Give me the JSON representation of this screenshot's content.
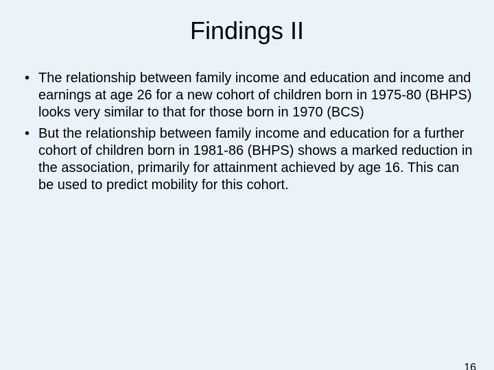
{
  "background_color": "#eaf2fa",
  "text_color": "#000000",
  "title": {
    "text": "Findings II",
    "fontsize": 36
  },
  "bullets": [
    "The relationship between family income and education and income and earnings at age 26 for a new cohort of children born in 1975-80 (BHPS) looks very similar to that for those born in 1970 (BCS)",
    "But the relationship between family income and education for a further cohort of children born in 1981-86 (BHPS) shows a marked reduction in the association, primarily for attainment achieved by age 16. This can be used to predict mobility for this cohort."
  ],
  "bullet_fontsize": 20,
  "page_number": "16",
  "page_number_fontsize": 16
}
